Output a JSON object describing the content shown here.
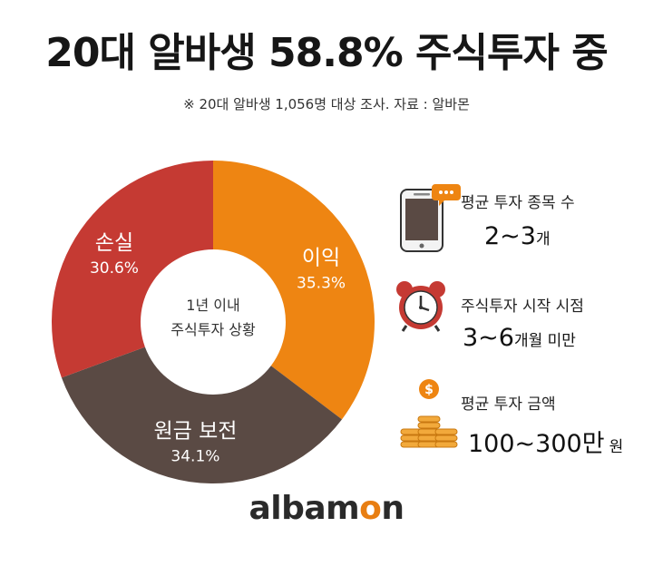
{
  "title": "20대 알바생 58.8% 주식투자 중",
  "subtitle": "※ 20대 알바생 1,056명 대상 조사. 자료 : 알바몬",
  "chart_data": {
    "type": "pie",
    "title": "",
    "center_label": [
      "1년 이내",
      "주식투자 상황"
    ],
    "slices": [
      {
        "label": "이익",
        "value": 35.3,
        "value_text": "35.3%",
        "color": "#ee8512"
      },
      {
        "label": "원금 보전",
        "value": 34.1,
        "value_text": "34.1%",
        "color": "#5a4a44"
      },
      {
        "label": "손실",
        "value": 30.6,
        "value_text": "30.6%",
        "color": "#c53a33"
      }
    ]
  },
  "info": {
    "count": {
      "label": "평균 투자 종목 수",
      "value_big": "2~3",
      "value_small": "개",
      "icon": "smartphone-chat-icon"
    },
    "start": {
      "label": "주식투자 시작 시점",
      "value_big": "3~6",
      "value_small": "개월 미만",
      "icon": "alarm-clock-icon"
    },
    "amount": {
      "label": "평균 투자 금액",
      "value_big": "100~300만",
      "value_small": "원",
      "icon": "coin-stack-icon"
    }
  },
  "logo": {
    "pre": "alba",
    "o": "o",
    "post": "n",
    "m": "m"
  },
  "colors": {
    "accent": "#ee8512",
    "loss": "#c53a33",
    "neutral": "#5a4a44"
  }
}
